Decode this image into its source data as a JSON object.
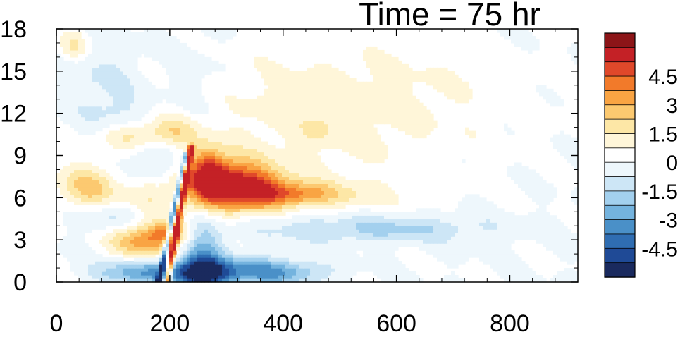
{
  "chart_data": {
    "type": "heatmap",
    "title": "Time = 75 hr",
    "xlabel": "",
    "ylabel": "",
    "xlim": [
      0,
      920
    ],
    "ylim": [
      0,
      18
    ],
    "x_ticks": [
      0,
      200,
      400,
      600,
      800
    ],
    "x_tick_labels": [
      "0",
      "200",
      "400",
      "600",
      "800"
    ],
    "y_ticks": [
      0,
      3,
      6,
      9,
      12,
      15,
      18
    ],
    "y_tick_labels": [
      "0",
      "3",
      "6",
      "9",
      "12",
      "15",
      "18"
    ],
    "colorbar": {
      "levels": [
        -5.25,
        -4.5,
        -3.75,
        -3,
        -2.25,
        -1.5,
        -0.75,
        0,
        0.75,
        1.5,
        2.25,
        3,
        3.75,
        4.5,
        5.25
      ],
      "tick_values": [
        4.5,
        3,
        1.5,
        0,
        -1.5,
        -3,
        -4.5
      ],
      "tick_labels": [
        "4.5",
        "3",
        "1.5",
        "0",
        "-1.5",
        "-3",
        "-4.5"
      ],
      "colors": [
        "#1a2a5e",
        "#1f4a96",
        "#2f6db2",
        "#4a90c8",
        "#74b3de",
        "#a3d0ee",
        "#cde6f6",
        "#eef7fc",
        "#ffffff",
        "#fff6d9",
        "#fde7a6",
        "#fcc970",
        "#f9a443",
        "#f27a2a",
        "#e0482a",
        "#c42126",
        "#8c1518"
      ]
    },
    "features": [
      {
        "kind": "blob",
        "x": 295,
        "y": 6.9,
        "sx": 55,
        "sy": 1.3,
        "value": 5.6
      },
      {
        "kind": "blob",
        "x": 360,
        "y": 6.6,
        "sx": 40,
        "sy": 0.9,
        "value": 2.6
      },
      {
        "kind": "blob",
        "x": 430,
        "y": 6.3,
        "sx": 45,
        "sy": 0.6,
        "value": 2.8
      },
      {
        "kind": "blob",
        "x": 520,
        "y": 6.1,
        "sx": 60,
        "sy": 0.7,
        "value": 1.0
      },
      {
        "kind": "blob",
        "x": 265,
        "y": 8.0,
        "sx": 22,
        "sy": 1.3,
        "value": 3.0
      },
      {
        "kind": "blob",
        "x": 155,
        "y": 3.0,
        "sx": 42,
        "sy": 0.8,
        "value": 3.6
      },
      {
        "kind": "blob",
        "x": 200,
        "y": 3.6,
        "sx": 25,
        "sy": 0.6,
        "value": 2.5
      },
      {
        "kind": "blob",
        "x": 60,
        "y": 6.8,
        "sx": 40,
        "sy": 1.2,
        "value": 2.5
      },
      {
        "kind": "blob",
        "x": 130,
        "y": 10.4,
        "sx": 35,
        "sy": 0.7,
        "value": 1.8
      },
      {
        "kind": "blob",
        "x": 210,
        "y": 10.8,
        "sx": 30,
        "sy": 0.8,
        "value": 1.8
      },
      {
        "kind": "blob",
        "x": 160,
        "y": 6.2,
        "sx": 30,
        "sy": 0.9,
        "value": 1.2
      },
      {
        "kind": "blob",
        "x": 30,
        "y": 16.8,
        "sx": 18,
        "sy": 0.8,
        "value": 1.6
      },
      {
        "kind": "blob",
        "x": 470,
        "y": 11.0,
        "sx": 180,
        "sy": 3.5,
        "value": 0.9
      },
      {
        "kind": "blob",
        "x": 590,
        "y": 14.0,
        "sx": 200,
        "sy": 2.5,
        "value": 0.5
      },
      {
        "kind": "blob",
        "x": 460,
        "y": 10.9,
        "sx": 15,
        "sy": 0.6,
        "value": 1.0
      },
      {
        "kind": "blob",
        "x": 255,
        "y": 0.6,
        "sx": 30,
        "sy": 0.9,
        "value": -5.2
      },
      {
        "kind": "blob",
        "x": 160,
        "y": 0.7,
        "sx": 60,
        "sy": 0.6,
        "value": -3.0
      },
      {
        "kind": "blob",
        "x": 330,
        "y": 0.8,
        "sx": 55,
        "sy": 0.7,
        "value": -3.0
      },
      {
        "kind": "blob",
        "x": 420,
        "y": 0.7,
        "sx": 50,
        "sy": 0.6,
        "value": -1.8
      },
      {
        "kind": "blob",
        "x": 260,
        "y": 3.0,
        "sx": 25,
        "sy": 1.5,
        "value": -2.0
      },
      {
        "kind": "blob",
        "x": 560,
        "y": 3.8,
        "sx": 150,
        "sy": 0.7,
        "value": -1.8
      },
      {
        "kind": "blob",
        "x": 170,
        "y": 8.2,
        "sx": 50,
        "sy": 1.1,
        "value": -1.3
      },
      {
        "kind": "blob",
        "x": 90,
        "y": 4.6,
        "sx": 40,
        "sy": 0.8,
        "value": -1.2
      },
      {
        "kind": "blob",
        "x": 80,
        "y": 14.5,
        "sx": 50,
        "sy": 2.0,
        "value": -0.9
      },
      {
        "kind": "blob",
        "x": 245,
        "y": 14.0,
        "sx": 40,
        "sy": 2.5,
        "value": -0.6
      },
      {
        "kind": "blob",
        "x": 110,
        "y": 12.0,
        "sx": 40,
        "sy": 1.0,
        "value": -0.8
      },
      {
        "kind": "line",
        "x0": 195,
        "y0": 0.0,
        "x1": 238,
        "y1": 9.6,
        "width": 4,
        "value": 5.6
      },
      {
        "kind": "line",
        "x0": 180,
        "y0": 0.0,
        "x1": 228,
        "y1": 9.0,
        "width": 3.5,
        "value": -4.8
      }
    ]
  }
}
